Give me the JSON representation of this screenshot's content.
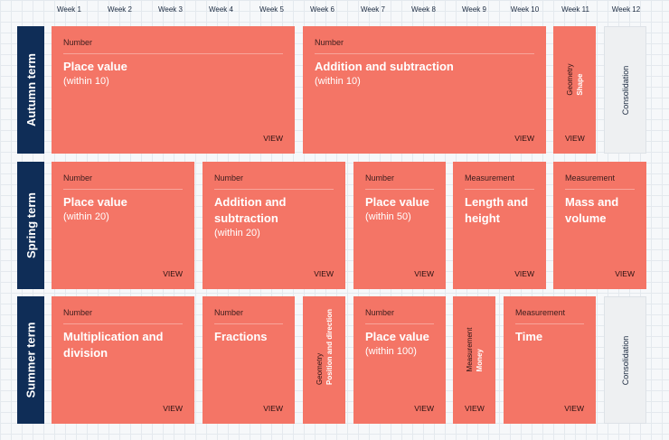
{
  "weeks": [
    "Week 1",
    "Week 2",
    "Week 3",
    "Week 4",
    "Week 5",
    "Week 6",
    "Week 7",
    "Week 8",
    "Week 9",
    "Week 10",
    "Week 11",
    "Week 12"
  ],
  "terms": {
    "autumn": "Autumn term",
    "spring": "Spring term",
    "summer": "Summer term"
  },
  "view_label": "VIEW",
  "consolidation_label": "Consolidation",
  "autumn": [
    {
      "category": "Number",
      "title": "Place value",
      "subtitle": "(within 10)"
    },
    {
      "category": "Number",
      "title": "Addition and subtraction",
      "subtitle": "(within 10)"
    },
    {
      "category": "Geometry",
      "title": "Shape"
    }
  ],
  "spring": [
    {
      "category": "Number",
      "title": "Place value",
      "subtitle": "(within 20)"
    },
    {
      "category": "Number",
      "title": "Addition and subtraction",
      "subtitle": "(within 20)"
    },
    {
      "category": "Number",
      "title": "Place value",
      "subtitle": "(within 50)"
    },
    {
      "category": "Measurement",
      "title": "Length and height"
    },
    {
      "category": "Measurement",
      "title": "Mass and volume"
    }
  ],
  "summer": [
    {
      "category": "Number",
      "title": "Multiplication and division"
    },
    {
      "category": "Number",
      "title": "Fractions"
    },
    {
      "category": "Geometry",
      "title": "Position and direction"
    },
    {
      "category": "Number",
      "title": "Place value",
      "subtitle": "(within 100)"
    },
    {
      "category": "Measurement",
      "title": "Money"
    },
    {
      "category": "Measurement",
      "title": "Time"
    }
  ]
}
